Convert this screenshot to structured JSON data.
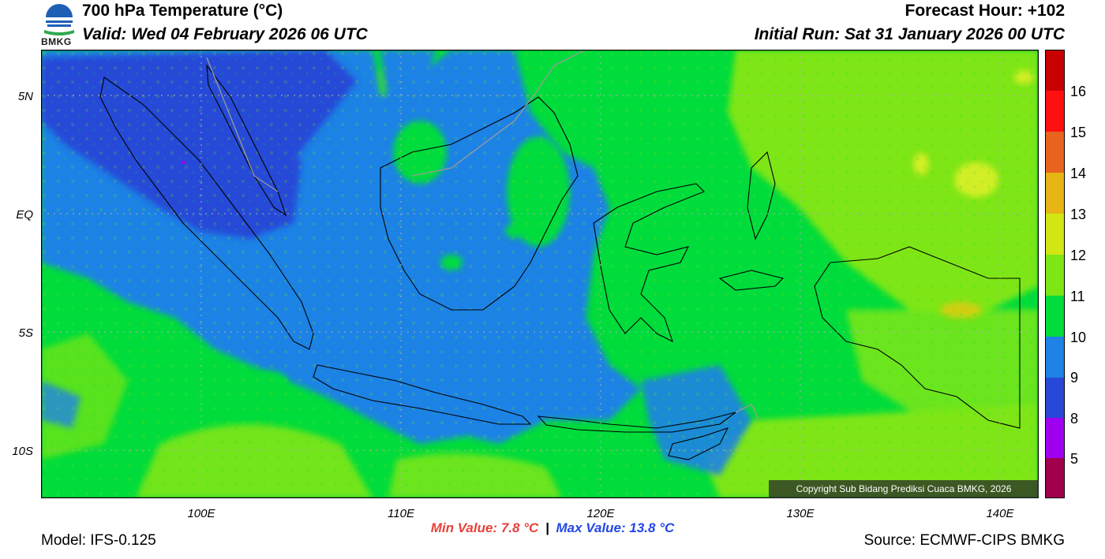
{
  "header": {
    "title": "700 hPa Temperature (°C)",
    "valid": "Valid: Wed 04 February 2026 06 UTC",
    "forecast_hour": "Forecast Hour: +102",
    "initial_run": "Initial Run: Sat 31 January 2026 00 UTC"
  },
  "logo": {
    "text": "BMKG",
    "colors": {
      "blue": "#1f5fb5",
      "green": "#2fa84f"
    }
  },
  "map": {
    "lat_labels": [
      "5N",
      "EQ",
      "5S",
      "10S"
    ],
    "lon_labels": [
      "100E",
      "110E",
      "120E",
      "130E",
      "140E"
    ],
    "copyright": "Copyright Sub Bidang Prediksi Cuaca BMKG, 2026",
    "extent": {
      "lon": [
        92,
        142
      ],
      "lat": [
        -12,
        7
      ]
    },
    "fill_colors": {
      "c8": "#2848d8",
      "c9": "#1e82e6",
      "c10": "#00dc3c",
      "c11": "#7ee614",
      "c12": "#d2ee28"
    }
  },
  "colorbar": {
    "labels": [
      "16",
      "15",
      "14",
      "13",
      "12",
      "11",
      "10",
      "9",
      "8",
      "5"
    ],
    "colors": [
      "#c80000",
      "#ff1010",
      "#ff0000",
      "#e8641e",
      "#e6b414",
      "#d2e614",
      "#7ee614",
      "#00dc3c",
      "#1e82e6",
      "#2848d8",
      "#a000f0",
      "#a0004c"
    ]
  },
  "stats": {
    "min": "Min Value: 7.8 °C",
    "separator": "|",
    "max": "Max Value: 13.8 °C"
  },
  "footer": {
    "model": "Model: IFS-0.125",
    "source": "Source: ECMWF-CIPS BMKG"
  }
}
